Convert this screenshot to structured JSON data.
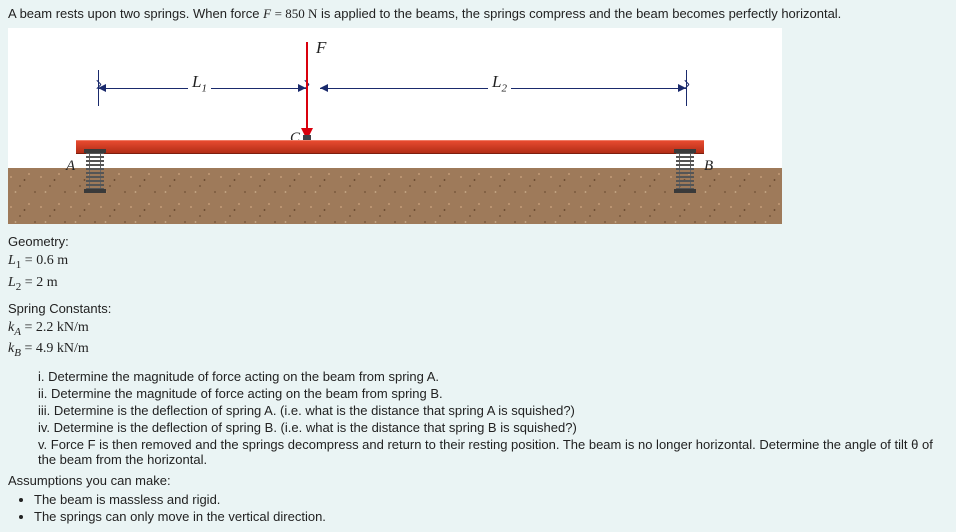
{
  "problem_statement": {
    "prefix": "A beam rests upon two springs. When force ",
    "force_var": "F",
    "equals": " = ",
    "force_value": "850 N",
    "suffix": " is applied to the beams, the springs compress and the beam becomes perfectly horizontal."
  },
  "figure": {
    "force_label": "F",
    "L1_label": "L",
    "L1_sub": "1",
    "L2_label": "L",
    "L2_sub": "2",
    "point_C": "C",
    "spring_A_label": "A",
    "spring_B_label": "B",
    "colors": {
      "beam_top": "#e74a2f",
      "beam_bottom": "#b32d16",
      "force_arrow": "#d9000d",
      "dimension": "#1a2a6c",
      "ground": "#9e7a5a",
      "background": "#eaf4f4"
    }
  },
  "geometry": {
    "heading": "Geometry:",
    "L1": {
      "sym": "L",
      "sub": "1",
      "eq": " = ",
      "val": "0.6 m"
    },
    "L2": {
      "sym": "L",
      "sub": "2",
      "eq": " = ",
      "val": "2 m"
    }
  },
  "spring_constants": {
    "heading": "Spring Constants:",
    "kA": {
      "sym": "k",
      "sub": "A",
      "eq": " = ",
      "val": "2.2 kN/m"
    },
    "kB": {
      "sym": "k",
      "sub": "B",
      "eq": " = ",
      "val": "4.9 kN/m"
    }
  },
  "questions": {
    "i": "i. Determine the magnitude of force acting on the beam from spring A.",
    "ii": "ii. Determine the magnitude of force acting on the beam from spring B.",
    "iii": "iii. Determine is the deflection of spring A. (i.e. what is the distance that spring A is squished?)",
    "iv": "iv. Determine is the deflection of spring B. (i.e. what is the distance that spring B is squished?)",
    "v": "v. Force F is then removed and the springs decompress and return to their resting position. The beam is no longer horizontal. Determine the angle of tilt θ of the beam from the horizontal."
  },
  "assumptions": {
    "heading": "Assumptions you can make:",
    "items": [
      "The beam is massless and rigid.",
      "The springs can only move in the vertical direction."
    ]
  }
}
